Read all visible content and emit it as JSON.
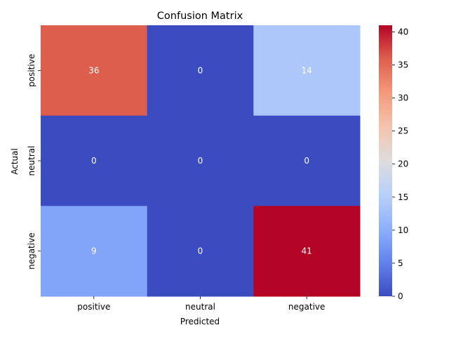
{
  "chart_data": {
    "type": "heatmap",
    "title": "Confusion Matrix",
    "xlabel": "Predicted",
    "ylabel": "Actual",
    "x_categories": [
      "positive",
      "neutral",
      "negative"
    ],
    "y_categories": [
      "positive",
      "neutral",
      "negative"
    ],
    "values": [
      [
        36,
        0,
        14
      ],
      [
        0,
        0,
        0
      ],
      [
        9,
        0,
        41
      ]
    ],
    "colormap": "coolwarm",
    "vmin": 0,
    "vmax": 41,
    "colorbar_ticks": [
      0,
      5,
      10,
      15,
      20,
      25,
      30,
      35,
      40
    ],
    "annotations": true
  }
}
